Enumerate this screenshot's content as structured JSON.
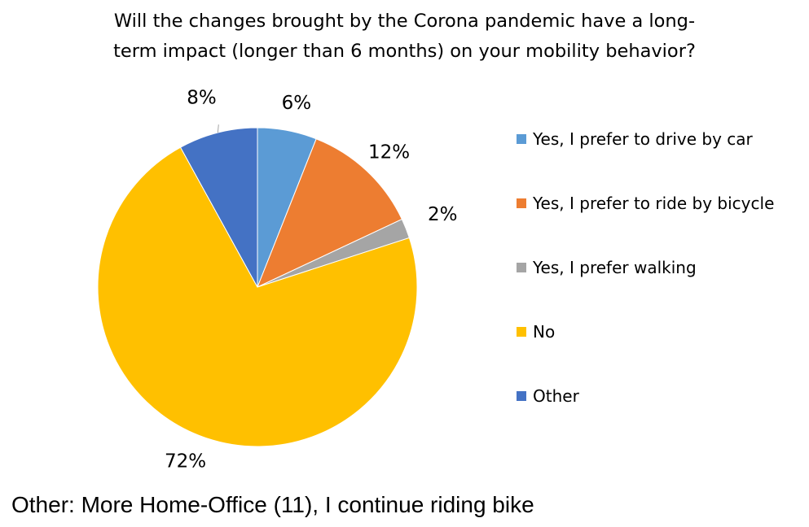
{
  "chart_data": {
    "type": "pie",
    "title_lines": [
      "Will the changes brought by the Corona pandemic have a long-",
      "term impact (longer than 6 months) on your mobility behavior?"
    ],
    "slices": [
      {
        "label": "Yes, I prefer to drive by car",
        "value": 6,
        "display": "6%",
        "color": "#5B9BD5"
      },
      {
        "label": "Yes, I prefer to ride by bicycle",
        "value": 12,
        "display": "12%",
        "color": "#ED7D31"
      },
      {
        "label": "Yes, I prefer walking",
        "value": 2,
        "display": "2%",
        "color": "#A5A5A5"
      },
      {
        "label": "No",
        "value": 72,
        "display": "72%",
        "color": "#FFC000"
      },
      {
        "label": "Other",
        "value": 8,
        "display": "8%",
        "color": "#4472C4"
      }
    ],
    "start_angle": "12 o'clock",
    "direction": "clockwise",
    "legend_position": "right"
  },
  "footnote": "Other: More Home-Office (11), I continue riding bike"
}
